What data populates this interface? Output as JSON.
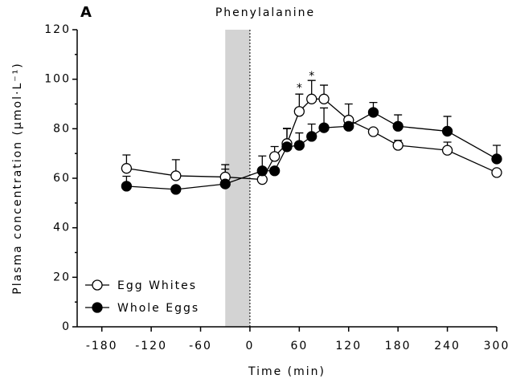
{
  "chart_data": {
    "type": "line",
    "panel_label": "A",
    "title": "Phenylalanine",
    "x_label": "Time (min)",
    "y_label": "Plasma concentration (µmol·L⁻¹)",
    "x": [
      -150,
      -90,
      -30,
      15,
      30,
      45,
      60,
      75,
      90,
      120,
      150,
      180,
      240,
      300
    ],
    "series": [
      {
        "name": "Egg Whites",
        "color": "#000000",
        "marker": "open",
        "values": [
          64,
          61,
          60.5,
          59.5,
          68.8,
          74,
          87,
          92,
          92,
          83.5,
          78.8,
          73.3,
          71.3,
          62.3
        ],
        "errors": [
          5.4,
          6.5,
          5,
          null,
          4,
          6,
          7,
          7.5,
          5.6,
          6.5,
          null,
          2,
          3.3,
          null
        ]
      },
      {
        "name": "Whole Eggs",
        "color": "#000000",
        "marker": "filled",
        "values": [
          56.8,
          55.5,
          57.7,
          63,
          63,
          72.7,
          73.3,
          76.9,
          80.4,
          81,
          86.6,
          81,
          79,
          67.8
        ],
        "errors": [
          4,
          null,
          6,
          6,
          null,
          7.5,
          5,
          5,
          8,
          null,
          4,
          4.6,
          6,
          5.5
        ]
      }
    ],
    "shaded_x": [
      -30,
      0
    ],
    "annotations": [
      {
        "text": "*",
        "x": 60,
        "y": 97.6
      },
      {
        "text": "*",
        "x": 75,
        "y": 102.5
      }
    ],
    "xlim": [
      -210,
      300
    ],
    "xticks": [
      -180,
      -120,
      -60,
      0,
      60,
      120,
      180,
      240,
      300
    ],
    "ylim": [
      0,
      120
    ],
    "yticks": [
      0,
      20,
      40,
      60,
      80,
      100,
      120
    ],
    "legend": "lower left"
  }
}
